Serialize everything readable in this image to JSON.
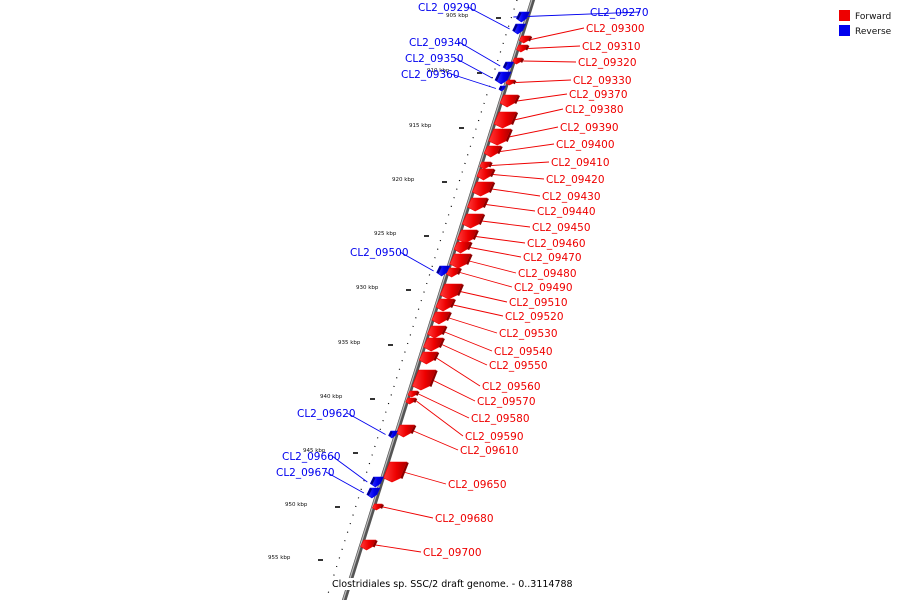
{
  "colors": {
    "forward": "#ee0000",
    "reverse": "#0000ee"
  },
  "legend": {
    "forward_label": "Forward",
    "reverse_label": "Reverse"
  },
  "caption": "Clostridiales sp. SSC/2 draft genome. - 0..3114788",
  "scale_labels": [
    "905 kbp",
    "910 kbp",
    "915 kbp",
    "920 kbp",
    "925 kbp",
    "930 kbp",
    "935 kbp",
    "940 kbp",
    "945 kbp",
    "950 kbp",
    "955 kbp"
  ],
  "genes": [
    {
      "id": "CL2_09270",
      "strand": "reverse"
    },
    {
      "id": "CL2_09290",
      "strand": "reverse"
    },
    {
      "id": "CL2_09300",
      "strand": "forward"
    },
    {
      "id": "CL2_09310",
      "strand": "forward"
    },
    {
      "id": "CL2_09320",
      "strand": "forward"
    },
    {
      "id": "CL2_09330",
      "strand": "forward"
    },
    {
      "id": "CL2_09340",
      "strand": "reverse"
    },
    {
      "id": "CL2_09350",
      "strand": "reverse"
    },
    {
      "id": "CL2_09360",
      "strand": "reverse"
    },
    {
      "id": "CL2_09370",
      "strand": "forward"
    },
    {
      "id": "CL2_09380",
      "strand": "forward"
    },
    {
      "id": "CL2_09390",
      "strand": "forward"
    },
    {
      "id": "CL2_09400",
      "strand": "forward"
    },
    {
      "id": "CL2_09410",
      "strand": "forward"
    },
    {
      "id": "CL2_09420",
      "strand": "forward"
    },
    {
      "id": "CL2_09430",
      "strand": "forward"
    },
    {
      "id": "CL2_09440",
      "strand": "forward"
    },
    {
      "id": "CL2_09450",
      "strand": "forward"
    },
    {
      "id": "CL2_09460",
      "strand": "forward"
    },
    {
      "id": "CL2_09470",
      "strand": "forward"
    },
    {
      "id": "CL2_09480",
      "strand": "forward"
    },
    {
      "id": "CL2_09490",
      "strand": "forward"
    },
    {
      "id": "CL2_09500",
      "strand": "reverse"
    },
    {
      "id": "CL2_09510",
      "strand": "forward"
    },
    {
      "id": "CL2_09520",
      "strand": "forward"
    },
    {
      "id": "CL2_09530",
      "strand": "forward"
    },
    {
      "id": "CL2_09540",
      "strand": "forward"
    },
    {
      "id": "CL2_09550",
      "strand": "forward"
    },
    {
      "id": "CL2_09560",
      "strand": "forward"
    },
    {
      "id": "CL2_09570",
      "strand": "forward"
    },
    {
      "id": "CL2_09580",
      "strand": "forward"
    },
    {
      "id": "CL2_09590",
      "strand": "forward"
    },
    {
      "id": "CL2_09610",
      "strand": "forward"
    },
    {
      "id": "CL2_09620",
      "strand": "reverse"
    },
    {
      "id": "CL2_09650",
      "strand": "forward"
    },
    {
      "id": "CL2_09660",
      "strand": "reverse"
    },
    {
      "id": "CL2_09670",
      "strand": "reverse"
    },
    {
      "id": "CL2_09680",
      "strand": "forward"
    },
    {
      "id": "CL2_09700",
      "strand": "forward"
    }
  ]
}
